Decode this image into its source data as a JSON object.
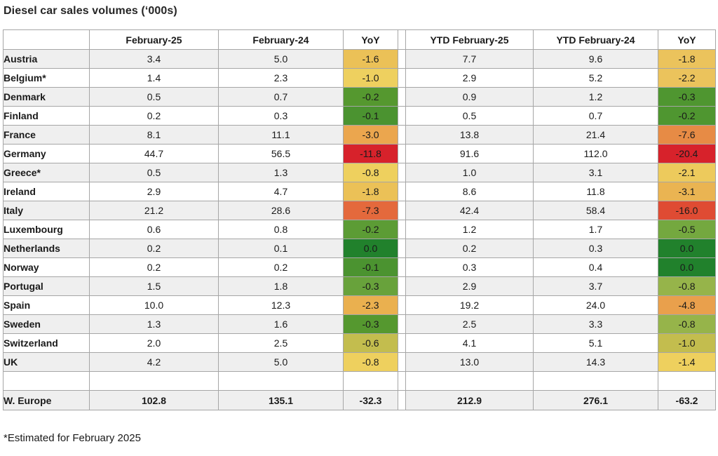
{
  "title": "Diesel car sales volumes (‘000s)",
  "footnote": "*Estimated for February 2025",
  "colors": {
    "row_alt_background": "#efefef",
    "grid_border": "#a6a6a6",
    "scale_best_green": "#21812c",
    "scale_mid_yellow": "#eed05e",
    "scale_worst_red": "#d7222b"
  },
  "chart_data": {
    "type": "table",
    "title": "Diesel car sales volumes (‘000s)",
    "columns": [
      "",
      "February-25",
      "February-24",
      "YoY",
      "YTD February-25",
      "YTD February-24",
      "YoY"
    ],
    "rows": [
      {
        "country": "Austria",
        "feb25": "3.4",
        "feb24": "5.0",
        "yoy": "-1.6",
        "yoy_color": "#ebc157",
        "ytd25": "7.7",
        "ytd24": "9.6",
        "ytd_yoy": "-1.8",
        "ytd_yoy_color": "#ebc35c"
      },
      {
        "country": "Belgium*",
        "feb25": "1.4",
        "feb24": "2.3",
        "yoy": "-1.0",
        "yoy_color": "#eed05f",
        "ytd25": "2.9",
        "ytd24": "5.2",
        "ytd_yoy": "-2.2",
        "ytd_yoy_color": "#ebc35c"
      },
      {
        "country": "Denmark",
        "feb25": "0.5",
        "feb24": "0.7",
        "yoy": "-0.2",
        "yoy_color": "#55982f",
        "ytd25": "0.9",
        "ytd24": "1.2",
        "ytd_yoy": "-0.3",
        "ytd_yoy_color": "#4f9630"
      },
      {
        "country": "Finland",
        "feb25": "0.2",
        "feb24": "0.3",
        "yoy": "-0.1",
        "yoy_color": "#4b9330",
        "ytd25": "0.5",
        "ytd24": "0.7",
        "ytd_yoy": "-0.2",
        "ytd_yoy_color": "#4f9630"
      },
      {
        "country": "France",
        "feb25": "8.1",
        "feb24": "11.1",
        "yoy": "-3.0",
        "yoy_color": "#eba64e",
        "ytd25": "13.8",
        "ytd24": "21.4",
        "ytd_yoy": "-7.6",
        "ytd_yoy_color": "#e78b45"
      },
      {
        "country": "Germany",
        "feb25": "44.7",
        "feb24": "56.5",
        "yoy": "-11.8",
        "yoy_color": "#d7222b",
        "ytd25": "91.6",
        "ytd24": "112.0",
        "ytd_yoy": "-20.4",
        "ytd_yoy_color": "#d7222b"
      },
      {
        "country": "Greece*",
        "feb25": "0.5",
        "feb24": "1.3",
        "yoy": "-0.8",
        "yoy_color": "#eed05e",
        "ytd25": "1.0",
        "ytd24": "3.1",
        "ytd_yoy": "-2.1",
        "ytd_yoy_color": "#edca5c"
      },
      {
        "country": "Ireland",
        "feb25": "2.9",
        "feb24": "4.7",
        "yoy": "-1.8",
        "yoy_color": "#ebc157",
        "ytd25": "8.6",
        "ytd24": "11.8",
        "ytd_yoy": "-3.1",
        "ytd_yoy_color": "#eab452"
      },
      {
        "country": "Italy",
        "feb25": "21.2",
        "feb24": "28.6",
        "yoy": "-7.3",
        "yoy_color": "#e4693c",
        "ytd25": "42.4",
        "ytd24": "58.4",
        "ytd_yoy": "-16.0",
        "ytd_yoy_color": "#df4b33"
      },
      {
        "country": "Luxembourg",
        "feb25": "0.6",
        "feb24": "0.8",
        "yoy": "-0.2",
        "yoy_color": "#5c9c35",
        "ytd25": "1.2",
        "ytd24": "1.7",
        "ytd_yoy": "-0.5",
        "ytd_yoy_color": "#74a83f"
      },
      {
        "country": "Netherlands",
        "feb25": "0.2",
        "feb24": "0.1",
        "yoy": "0.0",
        "yoy_color": "#21812c",
        "ytd25": "0.2",
        "ytd24": "0.3",
        "ytd_yoy": "0.0",
        "ytd_yoy_color": "#21812c"
      },
      {
        "country": "Norway",
        "feb25": "0.2",
        "feb24": "0.2",
        "yoy": "-0.1",
        "yoy_color": "#4b9330",
        "ytd25": "0.3",
        "ytd24": "0.4",
        "ytd_yoy": "0.0",
        "ytd_yoy_color": "#21812c"
      },
      {
        "country": "Portugal",
        "feb25": "1.5",
        "feb24": "1.8",
        "yoy": "-0.3",
        "yoy_color": "#68a23b",
        "ytd25": "2.9",
        "ytd24": "3.7",
        "ytd_yoy": "-0.8",
        "ytd_yoy_color": "#96b44a"
      },
      {
        "country": "Spain",
        "feb25": "10.0",
        "feb24": "12.3",
        "yoy": "-2.3",
        "yoy_color": "#eab04f",
        "ytd25": "19.2",
        "ytd24": "24.0",
        "ytd_yoy": "-4.8",
        "ytd_yoy_color": "#e9a04c"
      },
      {
        "country": "Sweden",
        "feb25": "1.3",
        "feb24": "1.6",
        "yoy": "-0.3",
        "yoy_color": "#55982f",
        "ytd25": "2.5",
        "ytd24": "3.3",
        "ytd_yoy": "-0.8",
        "ytd_yoy_color": "#96b44a"
      },
      {
        "country": "Switzerland",
        "feb25": "2.0",
        "feb24": "2.5",
        "yoy": "-0.6",
        "yoy_color": "#c3bd4e",
        "ytd25": "4.1",
        "ytd24": "5.1",
        "ytd_yoy": "-1.0",
        "ytd_yoy_color": "#c3bd4e"
      },
      {
        "country": "UK",
        "feb25": "4.2",
        "feb24": "5.0",
        "yoy": "-0.8",
        "yoy_color": "#eed05e",
        "ytd25": "13.0",
        "ytd24": "14.3",
        "ytd_yoy": "-1.4",
        "ytd_yoy_color": "#eed05e"
      }
    ],
    "total_row": {
      "country": "W. Europe",
      "feb25": "102.8",
      "feb24": "135.1",
      "yoy": "-32.3",
      "ytd25": "212.9",
      "ytd24": "276.1",
      "ytd_yoy": "-63.2"
    }
  }
}
